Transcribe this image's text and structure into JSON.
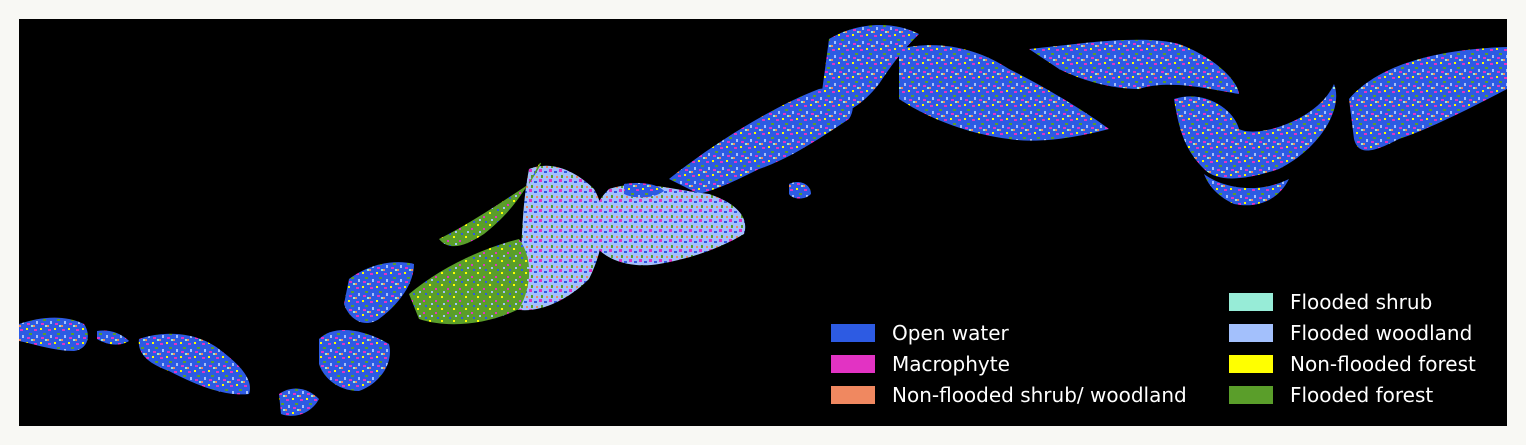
{
  "legend": {
    "items": [
      {
        "label": "Open water",
        "color": "#2d5be3"
      },
      {
        "label": "Macrophyte",
        "color": "#e233c3"
      },
      {
        "label": "Non-flooded shrub/ woodland",
        "color": "#f08860"
      },
      {
        "label": "Flooded shrub",
        "color": "#97ecd7"
      },
      {
        "label": "Flooded woodland",
        "color": "#a3c0fc"
      },
      {
        "label": "Non-flooded forest",
        "color": "#ffff00"
      },
      {
        "label": "Flooded forest",
        "color": "#5a9e2a"
      }
    ]
  },
  "map": {
    "background_color": "#000000",
    "frame_color": "#f8f8f4"
  }
}
